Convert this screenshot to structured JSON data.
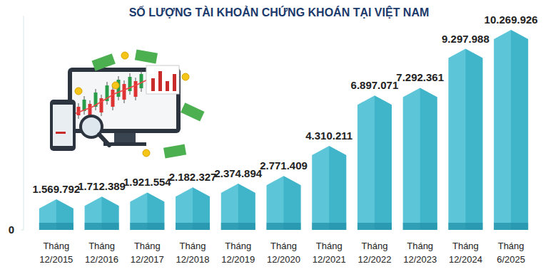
{
  "chart_data": {
    "type": "bar",
    "title": "SỐ LƯỢNG TÀI KHOẢN CHỨNG KHOÁN TẠI VIỆT NAM",
    "categories": [
      "Tháng 12/2015",
      "Tháng 12/2016",
      "Tháng 12/2017",
      "Tháng 12/2018",
      "Tháng 12/2019",
      "Tháng 12/2020",
      "Tháng 12/2021",
      "Tháng 12/2022",
      "Tháng 12/2023",
      "Tháng 12/2024",
      "Tháng 6/2025"
    ],
    "values": [
      1569792,
      1712389,
      1921554,
      2182327,
      2374894,
      2771409,
      4310211,
      6897071,
      7292361,
      9297988,
      10269926
    ],
    "value_labels": [
      "1.569.792",
      "1.712.389",
      "1.921.554",
      "2.182.327",
      "2.374.894",
      "2.771.409",
      "4.310.211",
      "6.897.071",
      "7.292.361",
      "9.297.988",
      "10.269.926"
    ],
    "color": "#5cc6d8",
    "ylim": [
      0,
      11000000
    ],
    "yticks": [
      0
    ],
    "grid": false,
    "data_labels": true
  }
}
